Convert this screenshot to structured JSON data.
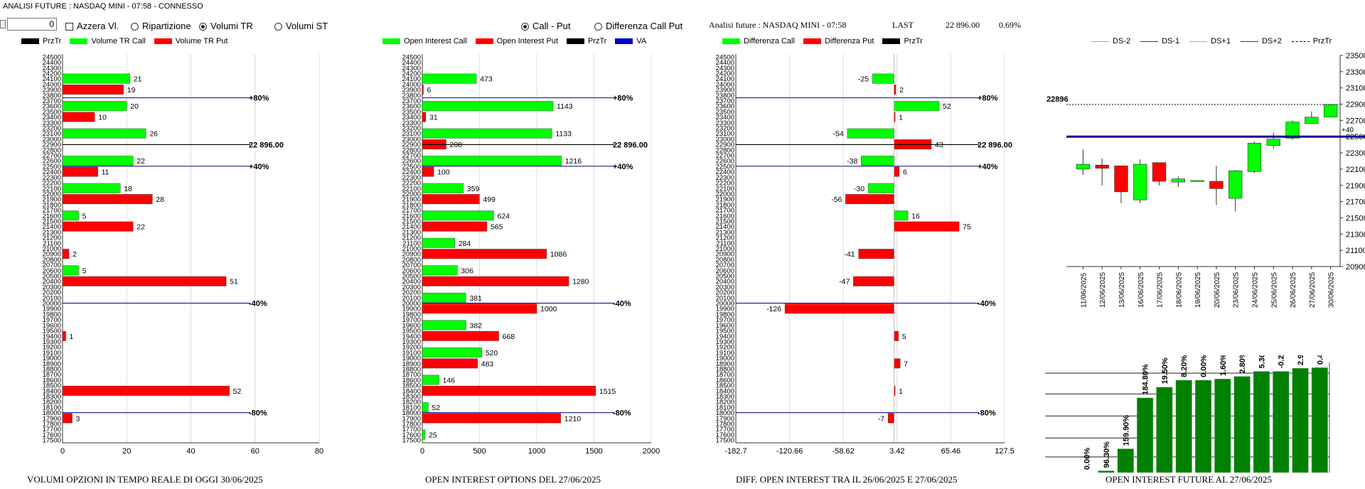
{
  "window": {
    "title": "ANALISI FUTURE : NASDAQ MINI - 07:58 - CONNESSO"
  },
  "controls": {
    "spin_value": "0",
    "azzera_label": "Azzera Vl.",
    "ripartizione_label": "Ripartizione",
    "volumi_tr_label": "Volumi TR",
    "volumi_st_label": "Volumi ST",
    "call_put_label": "Call - Put",
    "diff_call_put_label": "Differenza Call Put",
    "selected_mode": "Volumi TR",
    "selected_view": "Call - Put"
  },
  "panel3_header": {
    "title": "Analisi future : NASDAQ MINI - 07:58",
    "last_label": "LAST",
    "last_value": "22 896.00",
    "change": "0.69%"
  },
  "colors": {
    "green": "#00ff00",
    "red": "#ff0000",
    "black": "#000000",
    "blue": "#0000cc",
    "dark_green": "#008000",
    "navy": "#00008b"
  },
  "legends": {
    "panel1": [
      {
        "label": "PrzTr",
        "color": "#000000"
      },
      {
        "label": "Volume TR Call",
        "color": "#00ff00"
      },
      {
        "label": "Volume TR Put",
        "color": "#ff0000"
      }
    ],
    "panel2": [
      {
        "label": "Open Interest Call",
        "color": "#00ff00"
      },
      {
        "label": "Open Interest Put",
        "color": "#ff0000"
      },
      {
        "label": "PrzTr",
        "color": "#000000"
      },
      {
        "label": "VA",
        "color": "#0000cc"
      }
    ],
    "panel3": [
      {
        "label": "Differenza Call",
        "color": "#00ff00"
      },
      {
        "label": "Differenza Put",
        "color": "#ff0000"
      },
      {
        "label": "PrzTr",
        "color": "#000000"
      }
    ],
    "panel4": [
      {
        "label": "DS-2",
        "color": "#f08080",
        "style": "solid"
      },
      {
        "label": "DS-1",
        "color": "#cc0000",
        "style": "solid"
      },
      {
        "label": "DS+1",
        "color": "#33ff33",
        "style": "solid"
      },
      {
        "label": "DS+2",
        "color": "#006600",
        "style": "solid"
      },
      {
        "label": "PrzTr",
        "color": "#000000",
        "style": "dashed"
      }
    ]
  },
  "chart_data": [
    {
      "id": "volumi",
      "type": "bar",
      "orientation": "horizontal",
      "title": "VOLUMI OPZIONI IN TEMPO REALE DI OGGI  30/06/2025",
      "strikes": [
        "24500",
        "24400",
        "24300",
        "24200",
        "24100",
        "24000",
        "23900",
        "23800",
        "23700",
        "23600",
        "23500",
        "23400",
        "23300",
        "23200",
        "23100",
        "23000",
        "22900",
        "22800",
        "22700",
        "22600",
        "22500",
        "22400",
        "22300",
        "22200",
        "22100",
        "22000",
        "21900",
        "21800",
        "21700",
        "21600",
        "21500",
        "21400",
        "21300",
        "21200",
        "21100",
        "21000",
        "20900",
        "20800",
        "20700",
        "20600",
        "20500",
        "20400",
        "20300",
        "20200",
        "20100",
        "20000",
        "19900",
        "19800",
        "19700",
        "19600",
        "19500",
        "19400",
        "19300",
        "19200",
        "19100",
        "19000",
        "18900",
        "18800",
        "18700",
        "18600",
        "18500",
        "18400",
        "18300",
        "18200",
        "18100",
        "18000",
        "17900",
        "17800",
        "17700",
        "17600",
        "17500"
      ],
      "xlim": [
        0,
        80
      ],
      "xticks": [
        "0",
        "20",
        "40",
        "60",
        "80"
      ],
      "call": [
        {
          "strike": "24100",
          "value": 21
        },
        {
          "strike": "23600",
          "value": 20
        },
        {
          "strike": "23100",
          "value": 26
        },
        {
          "strike": "22600",
          "value": 22
        },
        {
          "strike": "22100",
          "value": 18
        },
        {
          "strike": "21600",
          "value": 5
        },
        {
          "strike": "20600",
          "value": 5
        }
      ],
      "put": [
        {
          "strike": "23900",
          "value": 19
        },
        {
          "strike": "23400",
          "value": 10
        },
        {
          "strike": "22400",
          "value": 11
        },
        {
          "strike": "21900",
          "value": 28
        },
        {
          "strike": "21400",
          "value": 22
        },
        {
          "strike": "20900",
          "value": 2
        },
        {
          "strike": "20400",
          "value": 51
        },
        {
          "strike": "19400",
          "value": 1
        },
        {
          "strike": "18400",
          "value": 52
        },
        {
          "strike": "17900",
          "value": 3
        }
      ],
      "levels": [
        {
          "strike": 23750,
          "label": "+80%",
          "color": "#00008b"
        },
        {
          "strike": 22896,
          "label": "22 896.00",
          "color": "#000000"
        },
        {
          "strike": 22500,
          "label": "+40%",
          "color": "#00008b"
        },
        {
          "strike": 20000,
          "label": "-40%",
          "color": "#00008b"
        },
        {
          "strike": 18000,
          "label": "-80%",
          "color": "#00008b"
        }
      ]
    },
    {
      "id": "open_interest",
      "type": "bar",
      "orientation": "horizontal",
      "title": "OPEN INTEREST OPTIONS DEL 27/06/2025",
      "xlim": [
        0,
        2000
      ],
      "xticks": [
        "0",
        "500",
        "1000",
        "1500",
        "2000"
      ],
      "call": [
        {
          "strike": "24100",
          "value": 473
        },
        {
          "strike": "23600",
          "value": 1143
        },
        {
          "strike": "23100",
          "value": 1133
        },
        {
          "strike": "22600",
          "value": 1216
        },
        {
          "strike": "22100",
          "value": 359
        },
        {
          "strike": "21600",
          "value": 624
        },
        {
          "strike": "21100",
          "value": 284
        },
        {
          "strike": "20600",
          "value": 306
        },
        {
          "strike": "20100",
          "value": 381
        },
        {
          "strike": "19600",
          "value": 382
        },
        {
          "strike": "19100",
          "value": 520
        },
        {
          "strike": "18600",
          "value": 146
        },
        {
          "strike": "18100",
          "value": 52
        },
        {
          "strike": "17600",
          "value": 25
        }
      ],
      "put": [
        {
          "strike": "23900",
          "value": 6
        },
        {
          "strike": "23400",
          "value": 31
        },
        {
          "strike": "22900",
          "value": 208
        },
        {
          "strike": "22400",
          "value": 100
        },
        {
          "strike": "21900",
          "value": 499
        },
        {
          "strike": "21400",
          "value": 565
        },
        {
          "strike": "20900",
          "value": 1086
        },
        {
          "strike": "20400",
          "value": 1280
        },
        {
          "strike": "19900",
          "value": 1000
        },
        {
          "strike": "19400",
          "value": 668
        },
        {
          "strike": "18900",
          "value": 483
        },
        {
          "strike": "18400",
          "value": 1515
        },
        {
          "strike": "17900",
          "value": 1210
        }
      ],
      "levels": [
        {
          "strike": 23750,
          "label": "+80%",
          "color": "#00008b"
        },
        {
          "strike": 22896,
          "label": "22 896.00",
          "color": "#000000"
        },
        {
          "strike": 22500,
          "label": "+40%",
          "color": "#00008b"
        },
        {
          "strike": 20000,
          "label": "-40%",
          "color": "#00008b"
        },
        {
          "strike": 18000,
          "label": "-80%",
          "color": "#00008b"
        }
      ]
    },
    {
      "id": "diff_oi",
      "type": "bar",
      "orientation": "horizontal",
      "title": "DIFF. OPEN INTEREST TRA IL 26/06/2025 E 27/06/2025",
      "xlim": [
        -182.7,
        127.5
      ],
      "xticks": [
        "-182.7",
        "-120.66",
        "-58.62",
        "3.42",
        "65.46",
        "127.5"
      ],
      "call": [
        {
          "strike": "24100",
          "value": -25
        },
        {
          "strike": "23600",
          "value": 52
        },
        {
          "strike": "23100",
          "value": -54
        },
        {
          "strike": "22600",
          "value": -38
        },
        {
          "strike": "22100",
          "value": -30
        },
        {
          "strike": "21600",
          "value": 16
        }
      ],
      "put": [
        {
          "strike": "23900",
          "value": 2
        },
        {
          "strike": "23400",
          "value": 1
        },
        {
          "strike": "22900",
          "value": 43
        },
        {
          "strike": "22400",
          "value": 6
        },
        {
          "strike": "21900",
          "value": -56
        },
        {
          "strike": "21400",
          "value": 75
        },
        {
          "strike": "20900",
          "value": -41
        },
        {
          "strike": "20400",
          "value": -47
        },
        {
          "strike": "19900",
          "value": -126
        },
        {
          "strike": "19400",
          "value": 5
        },
        {
          "strike": "18900",
          "value": 7
        },
        {
          "strike": "18400",
          "value": 1
        },
        {
          "strike": "17900",
          "value": -7
        }
      ],
      "levels": [
        {
          "strike": 23750,
          "label": "+80%",
          "color": "#00008b"
        },
        {
          "strike": 22896,
          "label": "22 896.00",
          "color": "#000000"
        },
        {
          "strike": 22500,
          "label": "+40%",
          "color": "#00008b"
        },
        {
          "strike": 20000,
          "label": "-40%",
          "color": "#00008b"
        },
        {
          "strike": 18000,
          "label": "-80%",
          "color": "#00008b"
        }
      ]
    },
    {
      "id": "candles",
      "type": "candlestick",
      "dates": [
        "11/06/2025",
        "12/06/2025",
        "13/06/2025",
        "16/06/2025",
        "17/06/2025",
        "18/06/2025",
        "19/06/2025",
        "20/06/2025",
        "23/06/2025",
        "24/06/2025",
        "25/06/2025",
        "26/06/2025",
        "27/06/2025",
        "30/06/2025"
      ],
      "ohlc": [
        [
          22100,
          22340,
          22030,
          22160
        ],
        [
          22150,
          22230,
          21900,
          22110
        ],
        [
          22140,
          22140,
          21680,
          21820
        ],
        [
          21720,
          22220,
          21680,
          22160
        ],
        [
          22180,
          22180,
          21900,
          21950
        ],
        [
          21940,
          22010,
          21880,
          21980
        ],
        [
          21960,
          21960,
          21960,
          21960
        ],
        [
          21950,
          22140,
          21660,
          21860
        ],
        [
          21740,
          22090,
          21580,
          22080
        ],
        [
          22070,
          22440,
          22050,
          22420
        ],
        [
          22390,
          22550,
          22350,
          22470
        ],
        [
          22480,
          22700,
          22460,
          22680
        ],
        [
          22660,
          22810,
          22660,
          22740
        ],
        [
          22740,
          22896,
          22740,
          22896
        ]
      ],
      "yticks": [
        "23500",
        "23300",
        "23100",
        "22900",
        "22700",
        "22500",
        "22300",
        "22100",
        "21900",
        "21700",
        "21500",
        "21300",
        "21100",
        "20900"
      ],
      "ylim": [
        20900,
        23500
      ],
      "last_label": "22896",
      "level_label": "+40",
      "prztr": 22896,
      "va_level": 22500
    },
    {
      "id": "oi_future",
      "type": "bar",
      "title": "OPEN INTEREST FUTURE AL 27/06/2025",
      "labels": [
        "0.00%",
        "96.30%",
        "159.90%",
        "184.80%",
        "19.50%",
        "8.20%",
        "0.00%",
        "1.60%",
        "2.80%",
        "5.30%",
        "-0.20%",
        "2.90%",
        "0.40%"
      ],
      "values": [
        0,
        3,
        38,
        119,
        136,
        147,
        147,
        149,
        153,
        161,
        161,
        166,
        167
      ],
      "ylim": [
        0,
        175
      ]
    }
  ]
}
